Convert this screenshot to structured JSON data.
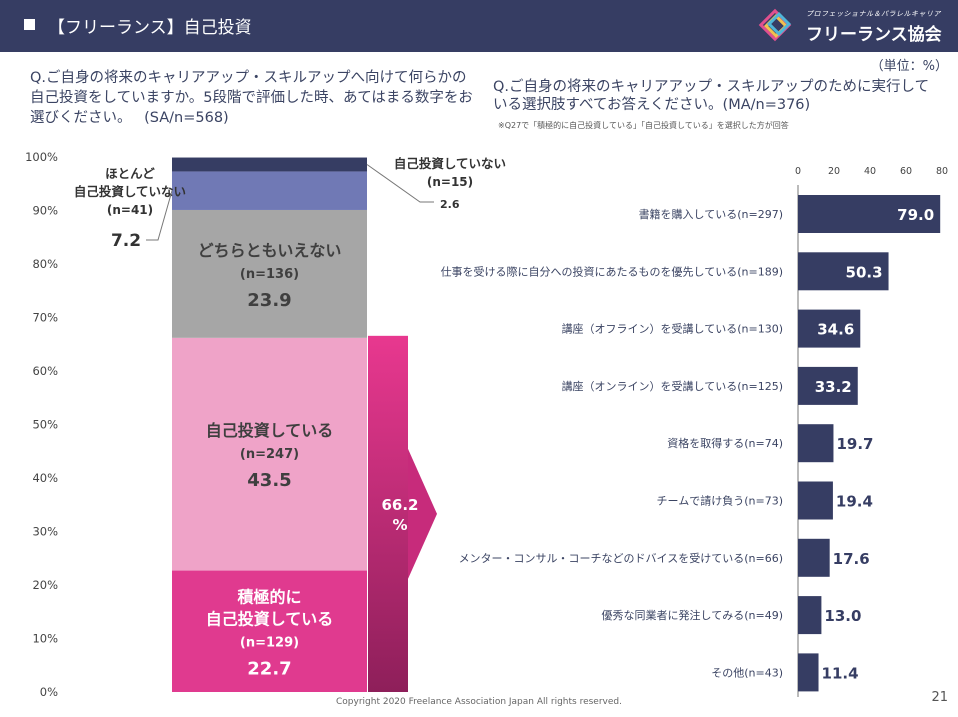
{
  "header": {
    "title": "【フリーランス】自己投資",
    "logo_small": "プロフェッショナル＆パラレルキャリア",
    "logo_name": "フリーランス協会"
  },
  "unit": "（単位：%）",
  "left_question": {
    "text": "Q.ご自身の将来のキャリアアップ・スキルアップへ向けて何らかの自己投資をしていますか。5段階で評価した時、あてはまる数字をお選びください。",
    "tag": "(SA/n=568)"
  },
  "right_question": {
    "text": "Q.ご自身の将来のキャリアアップ・スキルアップのために実行している選択肢すべてお答えください。(MA/n=376)",
    "note": "※Q27で「積極的に自己投資している」「自己投資している」を選択した方が回答"
  },
  "footer": "Copyright 2020 Freelance Association Japan All rights reserved.",
  "page_number": "21",
  "colors": {
    "header": "#363d63",
    "bar_navy": "#363d63",
    "not_at_all": "#363d63",
    "rarely": "#7079b5",
    "neutral": "#a6a6a6",
    "invest": "#efa3c8",
    "active": "#e03a8f",
    "total_arrow": "#c72b7b"
  },
  "chart_data": [
    {
      "type": "bar",
      "stacked": true,
      "ylim": [
        0,
        100
      ],
      "yticks": [
        "0%",
        "10%",
        "20%",
        "30%",
        "40%",
        "50%",
        "60%",
        "70%",
        "80%",
        "90%",
        "100%"
      ],
      "segments": [
        {
          "lines": [
            "積極的に",
            "自己投資している"
          ],
          "n": "(n=129)",
          "value": 22.7,
          "value_label": "22.7"
        },
        {
          "lines": [
            "自己投資している"
          ],
          "n": "(n=247)",
          "value": 43.5,
          "value_label": "43.5"
        },
        {
          "lines": [
            "どちらともいえない"
          ],
          "n": "(n=136)",
          "value": 23.9,
          "value_label": "23.9"
        },
        {
          "lines": [
            "ほとんど",
            "自己投資していない"
          ],
          "n": "(n=41)",
          "value": 7.2,
          "value_label": "7.2"
        },
        {
          "lines": [
            "自己投資していない"
          ],
          "n": "(n=15)",
          "value": 2.6,
          "value_label": "2.6"
        }
      ],
      "total": {
        "value": 66.2,
        "lines": [
          "66.2",
          "%"
        ]
      }
    },
    {
      "type": "bar",
      "orientation": "horizontal",
      "xlim": [
        0,
        80
      ],
      "xticks": [
        "0",
        "20",
        "40",
        "60",
        "80"
      ],
      "categories": [
        "書籍を購入している(n=297)",
        "仕事を受ける際に自分への投資にあたるものを優先している(n=189)",
        "講座（オフライン）を受講している(n=130)",
        "講座（オンライン）を受講している(n=125)",
        "資格を取得する(n=74)",
        "チームで請け負う(n=73)",
        "メンター・コンサル・コーチなどのドバイスを受けている(n=66)",
        "優秀な同業者に発注してみる(n=49)",
        "その他(n=43)"
      ],
      "values": [
        79.0,
        50.3,
        34.6,
        33.2,
        19.7,
        19.4,
        17.6,
        13.0,
        11.4
      ],
      "value_labels": [
        "79.0",
        "50.3",
        "34.6",
        "33.2",
        "19.7",
        "19.4",
        "17.6",
        "13.0",
        "11.4"
      ]
    }
  ]
}
